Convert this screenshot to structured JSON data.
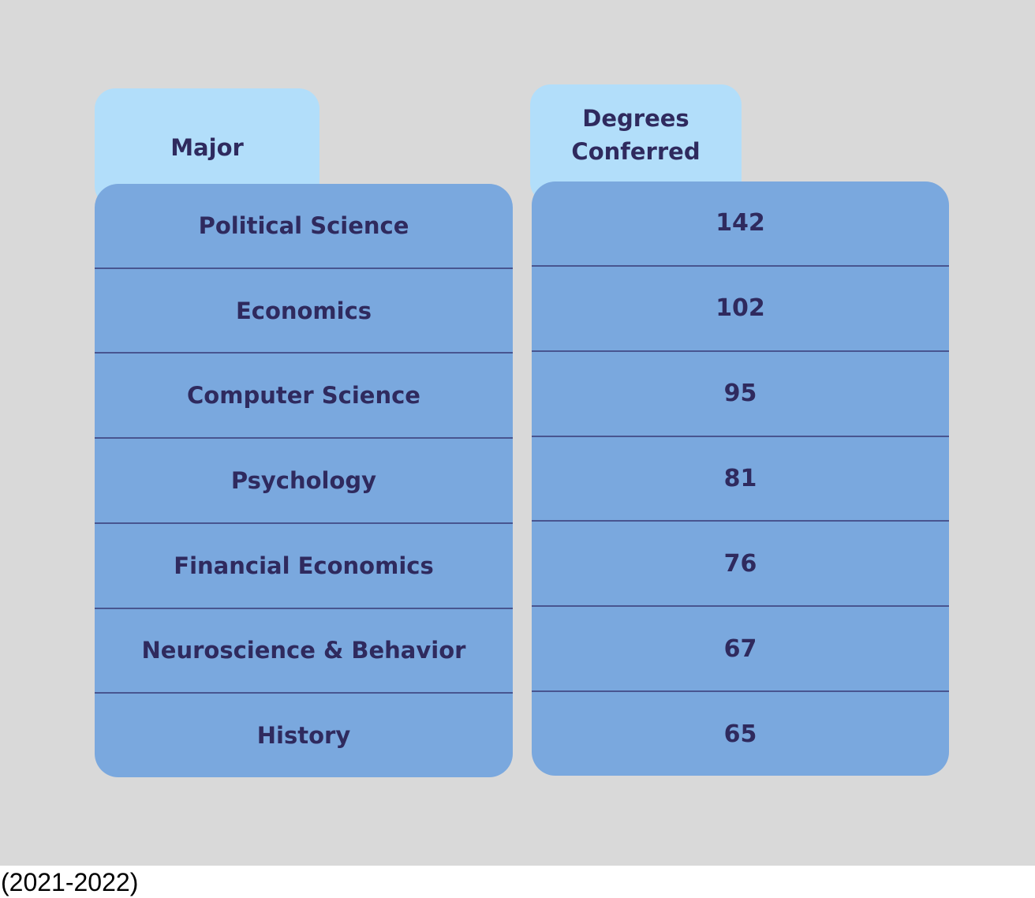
{
  "colors": {
    "page-bg": "#d9d9d9",
    "tab-bg": "#b2defa",
    "row-bg": "#7aa8de",
    "divider": "#485590",
    "table-text": "#2f2a5e",
    "caption-bg": "#ffffff",
    "caption-text": "#000000"
  },
  "table": {
    "major_header": "Major",
    "degrees_header": "Degrees Conferred",
    "rows": [
      {
        "major": "Political Science",
        "degrees": "142"
      },
      {
        "major": "Economics",
        "degrees": "102"
      },
      {
        "major": "Computer Science",
        "degrees": "95"
      },
      {
        "major": "Psychology",
        "degrees": "81"
      },
      {
        "major": "Financial Economics",
        "degrees": "76"
      },
      {
        "major": "Neuroscience & Behavior",
        "degrees": "67"
      },
      {
        "major": "History",
        "degrees": "65"
      }
    ]
  },
  "footer": {
    "caption": "(2021-2022)"
  },
  "chart_data": {
    "type": "table",
    "columns": [
      "Major",
      "Degrees Conferred"
    ],
    "rows": [
      [
        "Political Science",
        142
      ],
      [
        "Economics",
        102
      ],
      [
        "Computer Science",
        95
      ],
      [
        "Psychology",
        81
      ],
      [
        "Financial Economics",
        76
      ],
      [
        "Neuroscience & Behavior",
        67
      ],
      [
        "History",
        65
      ]
    ],
    "footnote": "(2021-2022)"
  }
}
